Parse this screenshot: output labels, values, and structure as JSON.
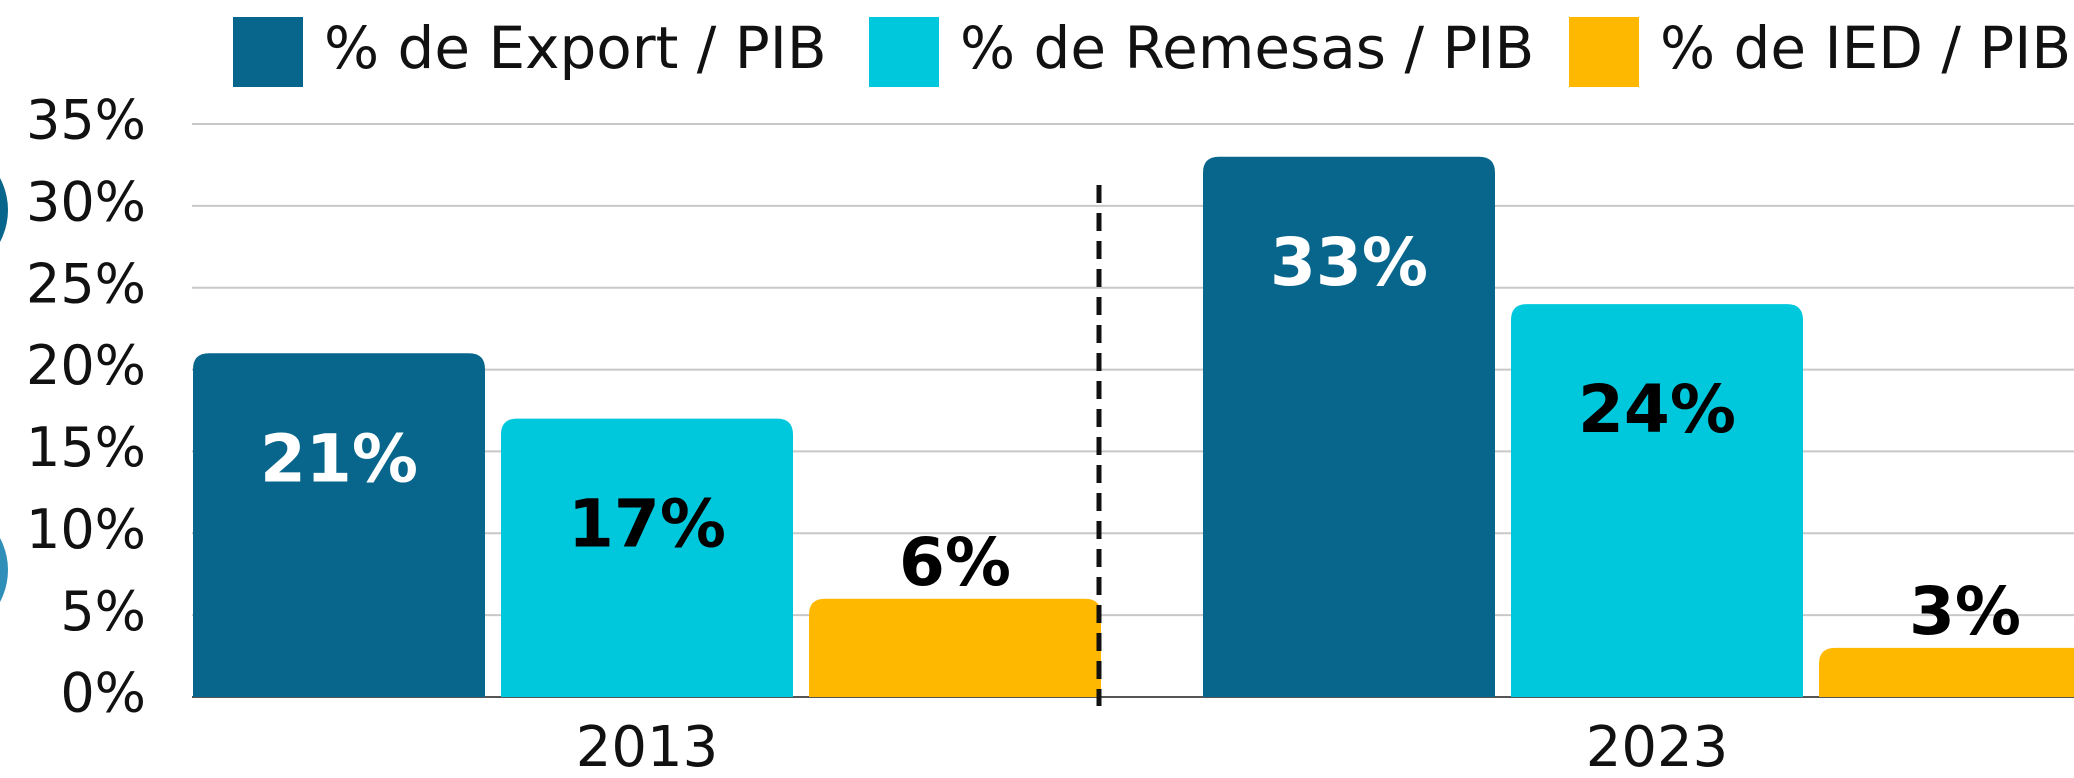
{
  "chart_data": {
    "type": "bar",
    "categories": [
      "2013",
      "2023"
    ],
    "series": [
      {
        "name": "% de Export / PIB",
        "color": "#08668c",
        "label_color": "#ffffff",
        "values": [
          21,
          33
        ],
        "value_labels": [
          "21%",
          "33%"
        ]
      },
      {
        "name": "% de Remesas / PIB",
        "color": "#00c8dc",
        "label_color": "#000000",
        "values": [
          17,
          24
        ],
        "value_labels": [
          "17%",
          "24%"
        ]
      },
      {
        "name": "% de IED / PIB",
        "color": "#ffb800",
        "label_color": "#000000",
        "values": [
          6,
          3
        ],
        "value_labels": [
          "6%",
          "3%"
        ]
      }
    ],
    "ylim": [
      0,
      35
    ],
    "yticks": [
      {
        "value": 0,
        "label": "0%"
      },
      {
        "value": 5,
        "label": "5%"
      },
      {
        "value": 10,
        "label": "10%"
      },
      {
        "value": 15,
        "label": "15%"
      },
      {
        "value": 20,
        "label": "20%"
      },
      {
        "value": 25,
        "label": "25%"
      },
      {
        "value": 30,
        "label": "30%"
      },
      {
        "value": 35,
        "label": "35%"
      }
    ],
    "grid": true,
    "legend": "top"
  }
}
